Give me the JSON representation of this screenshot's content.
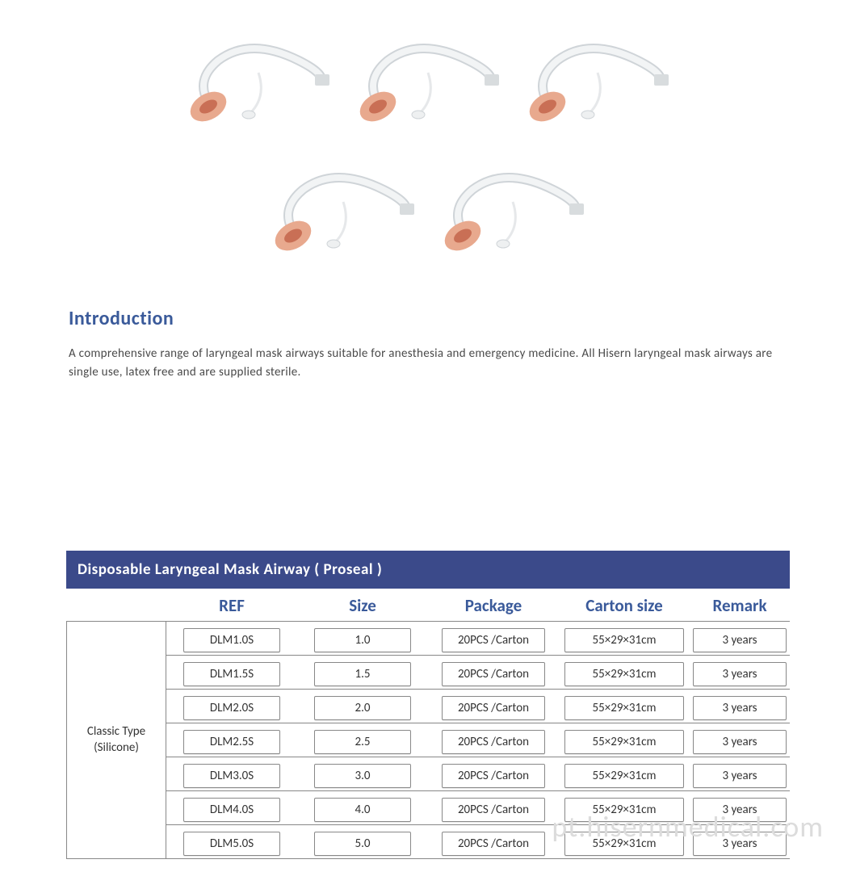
{
  "intro": {
    "heading": "Introduction",
    "body": "A comprehensive range of laryngeal mask airways suitable for anesthesia and emergency medicine. All Hisern laryngeal mask airways are single use, latex free and are supplied sterile."
  },
  "table": {
    "title": "Disposable Laryngeal Mask Airway ( Proseal )",
    "headers": {
      "ref": "REF",
      "size": "Size",
      "package": "Package",
      "carton": "Carton size",
      "remark": "Remark"
    },
    "type_label_line1": "Classic Type",
    "type_label_line2": "(Silicone)",
    "rows": [
      {
        "ref": "DLM1.0S",
        "size": "1.0",
        "package": "20PCS /Carton",
        "carton": "55×29×31cm",
        "remark": "3 years"
      },
      {
        "ref": "DLM1.5S",
        "size": "1.5",
        "package": "20PCS /Carton",
        "carton": "55×29×31cm",
        "remark": "3 years"
      },
      {
        "ref": "DLM2.0S",
        "size": "2.0",
        "package": "20PCS /Carton",
        "carton": "55×29×31cm",
        "remark": "3 years"
      },
      {
        "ref": "DLM2.5S",
        "size": "2.5",
        "package": "20PCS /Carton",
        "carton": "55×29×31cm",
        "remark": "3 years"
      },
      {
        "ref": "DLM3.0S",
        "size": "3.0",
        "package": "20PCS /Carton",
        "carton": "55×29×31cm",
        "remark": "3 years"
      },
      {
        "ref": "DLM4.0S",
        "size": "4.0",
        "package": "20PCS /Carton",
        "carton": "55×29×31cm",
        "remark": "3 years"
      },
      {
        "ref": "DLM5.0S",
        "size": "5.0",
        "package": "20PCS /Carton",
        "carton": "55×29×31cm",
        "remark": "3 years"
      }
    ]
  },
  "watermark": "pt.hisernmedical.com",
  "colors": {
    "heading": "#3a5a9a",
    "titlebar_bg": "#3b4a8a",
    "titlebar_fg": "#ffffff",
    "body_text": "#4a4a4a",
    "border": "#888888",
    "watermark": "#dcdcdc"
  },
  "image": {
    "cuff_color": "#e8a98e",
    "cuff_inner": "#c96f55",
    "tube_stroke": "#cfd4d8",
    "tube_fill": "#f2f4f5",
    "connector": "#d8dcde"
  }
}
